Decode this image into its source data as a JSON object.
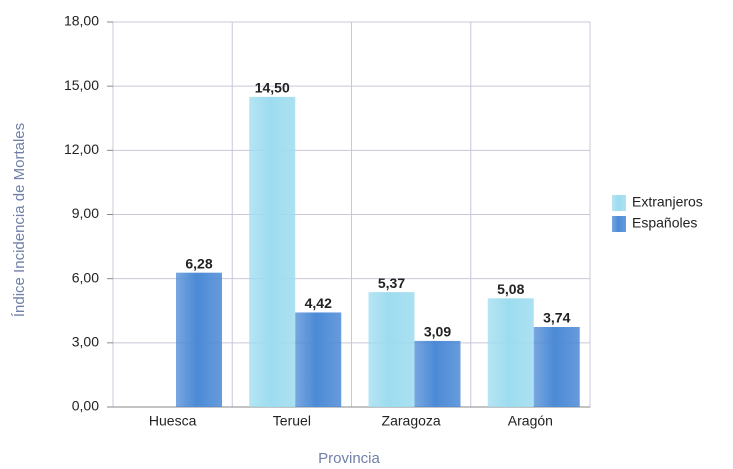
{
  "chart_data": {
    "type": "bar",
    "x_label": "Provincia",
    "y_label": "Índice Incidencia de Mortales",
    "categories": [
      "Huesca",
      "Teruel",
      "Zaragoza",
      "Aragón"
    ],
    "series": [
      {
        "name": "Extranjeros",
        "color": "#9ddcef",
        "values": [
          null,
          14.5,
          5.37,
          5.08
        ],
        "value_labels": [
          null,
          "14,50",
          "5,37",
          "5,08"
        ]
      },
      {
        "name": "Españoles",
        "color": "#4c8ad6",
        "values": [
          6.28,
          4.42,
          3.09,
          3.74
        ],
        "value_labels": [
          "6,28",
          "4,42",
          "3,09",
          "3,74"
        ]
      }
    ],
    "ylim": [
      0,
      18
    ],
    "yticks": [
      {
        "value": 0,
        "label": "0,00"
      },
      {
        "value": 3,
        "label": "3,00"
      },
      {
        "value": 6,
        "label": "6,00"
      },
      {
        "value": 9,
        "label": "9,00"
      },
      {
        "value": 12,
        "label": "12,00"
      },
      {
        "value": 15,
        "label": "15,00"
      },
      {
        "value": 18,
        "label": "18,00"
      }
    ],
    "grid": true,
    "legend": "right"
  }
}
